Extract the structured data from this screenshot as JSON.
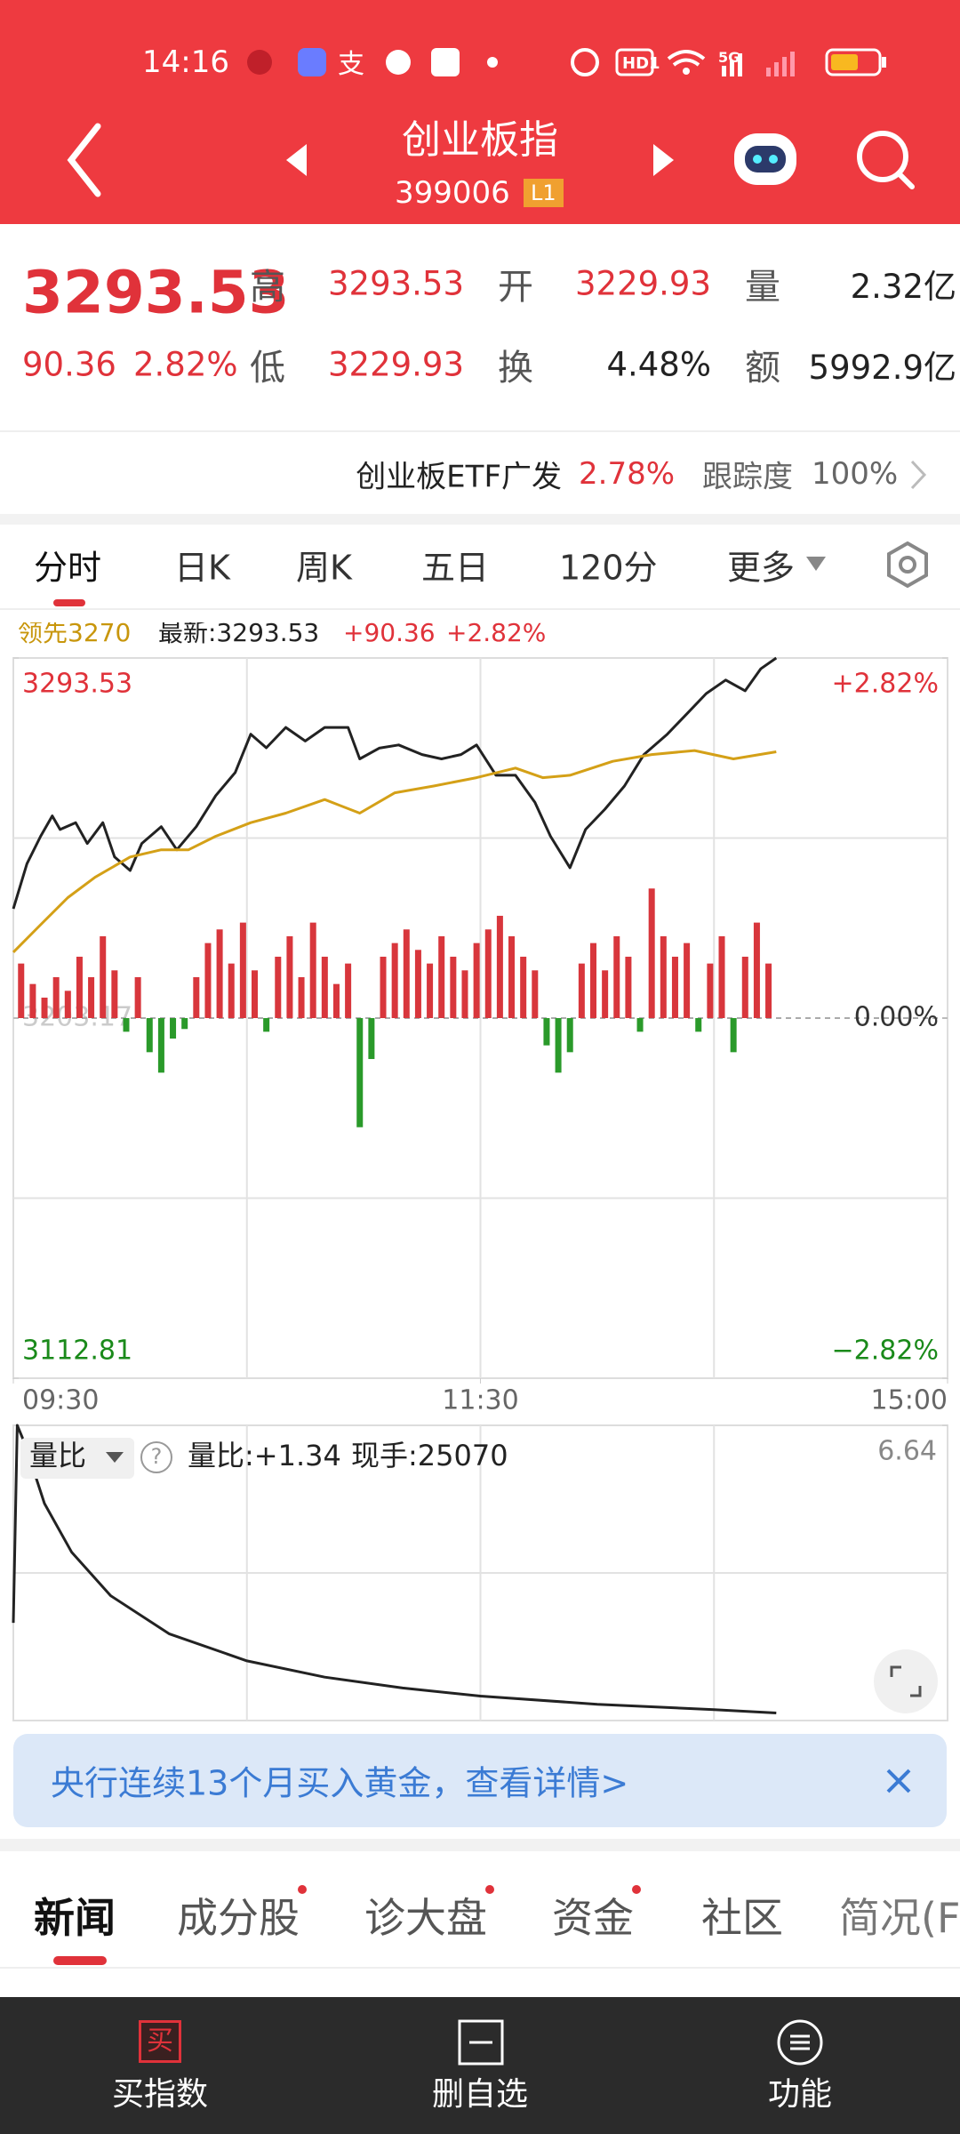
{
  "status_bar": {
    "time": "14:16",
    "hd": "HD1",
    "network": "5G"
  },
  "header": {
    "title": "创业板指",
    "code": "399006",
    "level": "L1"
  },
  "quote": {
    "price": "3293.53",
    "change": "90.36",
    "change_pct": "2.82%",
    "fields": [
      [
        {
          "label": "高",
          "value": "3293.53"
        },
        {
          "label": "开",
          "value": "3229.93"
        },
        {
          "label": "量",
          "value": "2.32亿"
        }
      ],
      [
        {
          "label": "低",
          "value": "3229.93"
        },
        {
          "label": "换",
          "value": "4.48%"
        },
        {
          "label": "额",
          "value": "5992.9亿"
        }
      ]
    ]
  },
  "etf": {
    "name": "创业板ETF广发",
    "change": "2.78%",
    "tracking_label": "跟踪度",
    "tracking": "100%"
  },
  "tabs": [
    "分时",
    "日K",
    "周K",
    "五日",
    "120分",
    "更多"
  ],
  "chart_data": [
    {
      "type": "line",
      "legend": {
        "lead": "领先3270",
        "latest": "最新:3293.53",
        "change": "+90.36",
        "change_pct": "+2.82%"
      },
      "xlim": [
        0,
        240
      ],
      "xticks": [
        {
          "value": 0,
          "label": "09:30"
        },
        {
          "value": 120,
          "label": "11:30"
        },
        {
          "value": 240,
          "label": "15:00"
        }
      ],
      "ylim": [
        3112.81,
        3293.53
      ],
      "yticks": [
        3293.53,
        3203.17,
        3112.81
      ],
      "y2lim": [
        -2.82,
        2.82
      ],
      "y2ticks": [
        {
          "value": 2.82,
          "label": "+2.82%"
        },
        {
          "value": 0,
          "label": "0.00%"
        },
        {
          "value": -2.82,
          "label": "−2.82%"
        }
      ],
      "volume_lim": [
        -264,
        264
      ],
      "grid": true,
      "series": [
        {
          "color": "#222222",
          "x": [
            0,
            3.5,
            7,
            10,
            12,
            16,
            19,
            23,
            26,
            30,
            33,
            38,
            42,
            47,
            52,
            57,
            61,
            65,
            70,
            75,
            80,
            86,
            89,
            94,
            99,
            105,
            110,
            115,
            119,
            124,
            129,
            134,
            138,
            143,
            147,
            152,
            157,
            162,
            168,
            173,
            178,
            183,
            188,
            192,
            196
          ],
          "values": [
            3230.6,
            3241.9,
            3248.8,
            3253.9,
            3250.5,
            3252.2,
            3247.0,
            3252.2,
            3243.6,
            3240.2,
            3247.0,
            3251.2,
            3245.4,
            3251.2,
            3259.0,
            3264.8,
            3274.4,
            3271.0,
            3276.1,
            3272.7,
            3276.1,
            3276.1,
            3268.2,
            3270.9,
            3271.7,
            3269.3,
            3268.2,
            3269.3,
            3271.7,
            3264.1,
            3264.1,
            3257.3,
            3248.8,
            3240.9,
            3250.5,
            3255.6,
            3261.4,
            3269.3,
            3274.4,
            3279.5,
            3284.6,
            3288.0,
            3285.3,
            3290.8,
            3293.53
          ]
        },
        {
          "color": "#d4a017",
          "x": [
            0,
            7,
            14,
            21,
            30,
            38,
            45,
            52,
            61,
            70,
            80,
            89,
            98,
            108,
            119,
            129,
            136,
            143,
            154,
            164,
            175,
            185,
            196
          ],
          "values": [
            3219.7,
            3226.6,
            3233.4,
            3238.5,
            3243.6,
            3245.4,
            3245.4,
            3248.8,
            3252.2,
            3254.6,
            3258.0,
            3254.6,
            3259.7,
            3261.4,
            3263.5,
            3265.9,
            3263.5,
            3264.1,
            3267.6,
            3269.3,
            3270.3,
            3268.2,
            3270
          ]
        },
        {
          "type": "bar",
          "axis": "volume",
          "color": "#d8363c",
          "negative_color": "#2a9a2a",
          "x": [
            2,
            5,
            8,
            11,
            14,
            17,
            20,
            23,
            26,
            29,
            32,
            35,
            38,
            41,
            44,
            47,
            50,
            53,
            56,
            59,
            62,
            65,
            68,
            71,
            74,
            77,
            80,
            83,
            86,
            89,
            92,
            95,
            98,
            101,
            104,
            107,
            110,
            113,
            116,
            119,
            122,
            125,
            128,
            131,
            134,
            137,
            140,
            143,
            146,
            149,
            152,
            155,
            158,
            161,
            164,
            167,
            170,
            173,
            176,
            179,
            182,
            185,
            188,
            191,
            194
          ],
          "values": [
            40,
            25,
            15,
            30,
            20,
            45,
            30,
            60,
            35,
            -10,
            30,
            -25,
            -40,
            -15,
            -8,
            30,
            55,
            65,
            40,
            70,
            35,
            -10,
            45,
            60,
            30,
            70,
            45,
            25,
            40,
            -80,
            -30,
            45,
            55,
            65,
            50,
            40,
            60,
            45,
            35,
            55,
            65,
            75,
            60,
            45,
            35,
            -20,
            -40,
            -25,
            40,
            55,
            35,
            60,
            45,
            -10,
            95,
            60,
            45,
            55,
            -10,
            40,
            60,
            -25,
            45,
            70,
            40
          ]
        }
      ]
    },
    {
      "type": "line",
      "labels": {
        "selector": "量比",
        "help": "?",
        "ratio": "量比:+1.34",
        "hand": "现手:25070"
      },
      "xlim": [
        0,
        240
      ],
      "ylim": [
        1.2,
        6.64
      ],
      "yticks": [
        6.64
      ],
      "grid": true,
      "series": [
        {
          "color": "#222222",
          "x": [
            0,
            1,
            3,
            8,
            15,
            25,
            40,
            60,
            80,
            100,
            120,
            150,
            180,
            196
          ],
          "values": [
            3.0,
            6.64,
            6.3,
            5.2,
            4.3,
            3.5,
            2.8,
            2.3,
            2.0,
            1.8,
            1.65,
            1.5,
            1.4,
            1.34
          ]
        }
      ]
    }
  ],
  "banner": {
    "text": "央行连续13个月买入黄金，查看详情>"
  },
  "news_tabs": [
    "新闻",
    "成分股",
    "诊大盘",
    "资金",
    "社区",
    "简况(F"
  ],
  "bottom_nav": {
    "buy_icon": "买",
    "items": [
      "买指数",
      "删自选",
      "功能"
    ]
  }
}
